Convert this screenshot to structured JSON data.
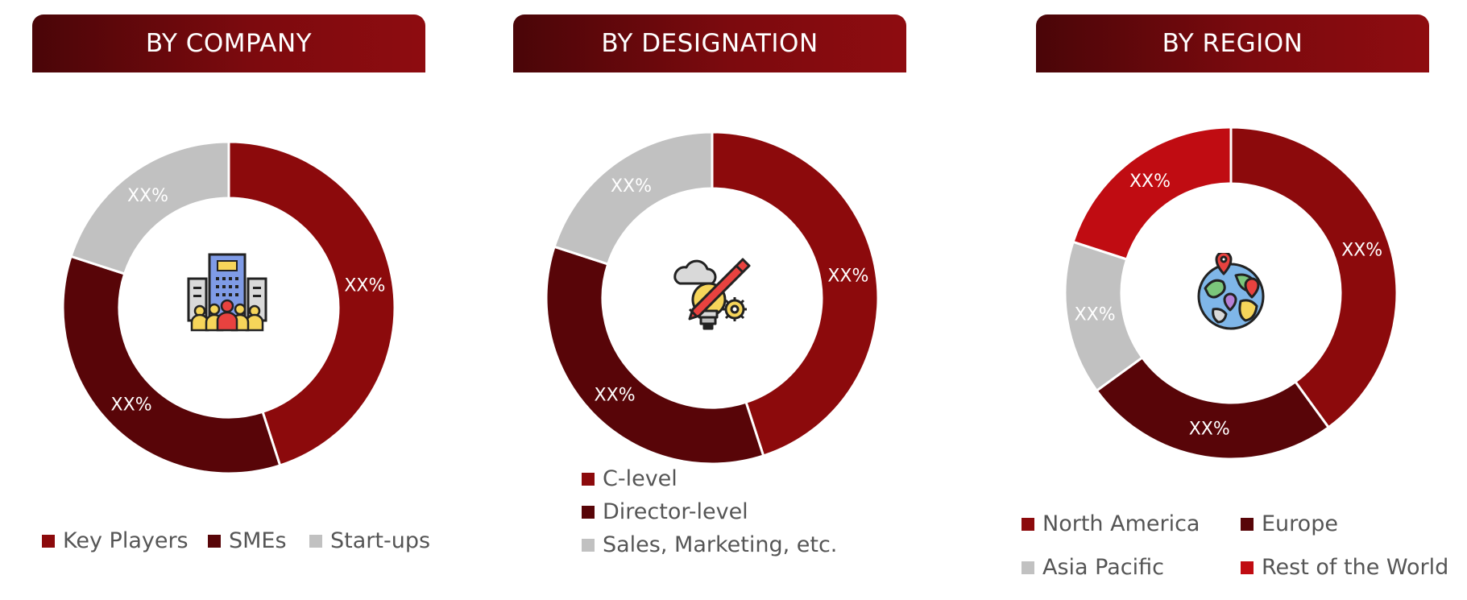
{
  "chart_data": [
    {
      "type": "pie",
      "title": "BY COMPANY",
      "categories": [
        "Key Players",
        "SMEs",
        "Start-ups"
      ],
      "values": [
        45,
        35,
        20
      ],
      "data_labels": [
        "XX%",
        "XX%",
        "XX%"
      ],
      "colors": [
        "#8c0a0c",
        "#580508",
        "#c1c1c1"
      ],
      "legend_position": "bottom",
      "center_icon": "company-building-icon"
    },
    {
      "type": "pie",
      "title": "BY DESIGNATION",
      "categories": [
        "C-level",
        "Director-level",
        "Sales, Marketing, etc."
      ],
      "values": [
        45,
        35,
        20
      ],
      "data_labels": [
        "XX%",
        "XX%",
        "XX%"
      ],
      "colors": [
        "#8c0a0c",
        "#580508",
        "#c1c1c1"
      ],
      "legend_position": "bottom",
      "center_icon": "idea-pencil-gear-icon"
    },
    {
      "type": "pie",
      "title": "BY REGION",
      "categories": [
        "North America",
        "Europe",
        "Asia Pacific",
        "Rest of the World"
      ],
      "values": [
        40,
        25,
        15,
        20
      ],
      "data_labels": [
        "XX%",
        "XX%",
        "XX%",
        "XX%"
      ],
      "colors": [
        "#8c0a0c",
        "#580508",
        "#c1c1c1",
        "#c00c12"
      ],
      "legend_position": "bottom",
      "center_icon": "globe-location-icon"
    }
  ]
}
